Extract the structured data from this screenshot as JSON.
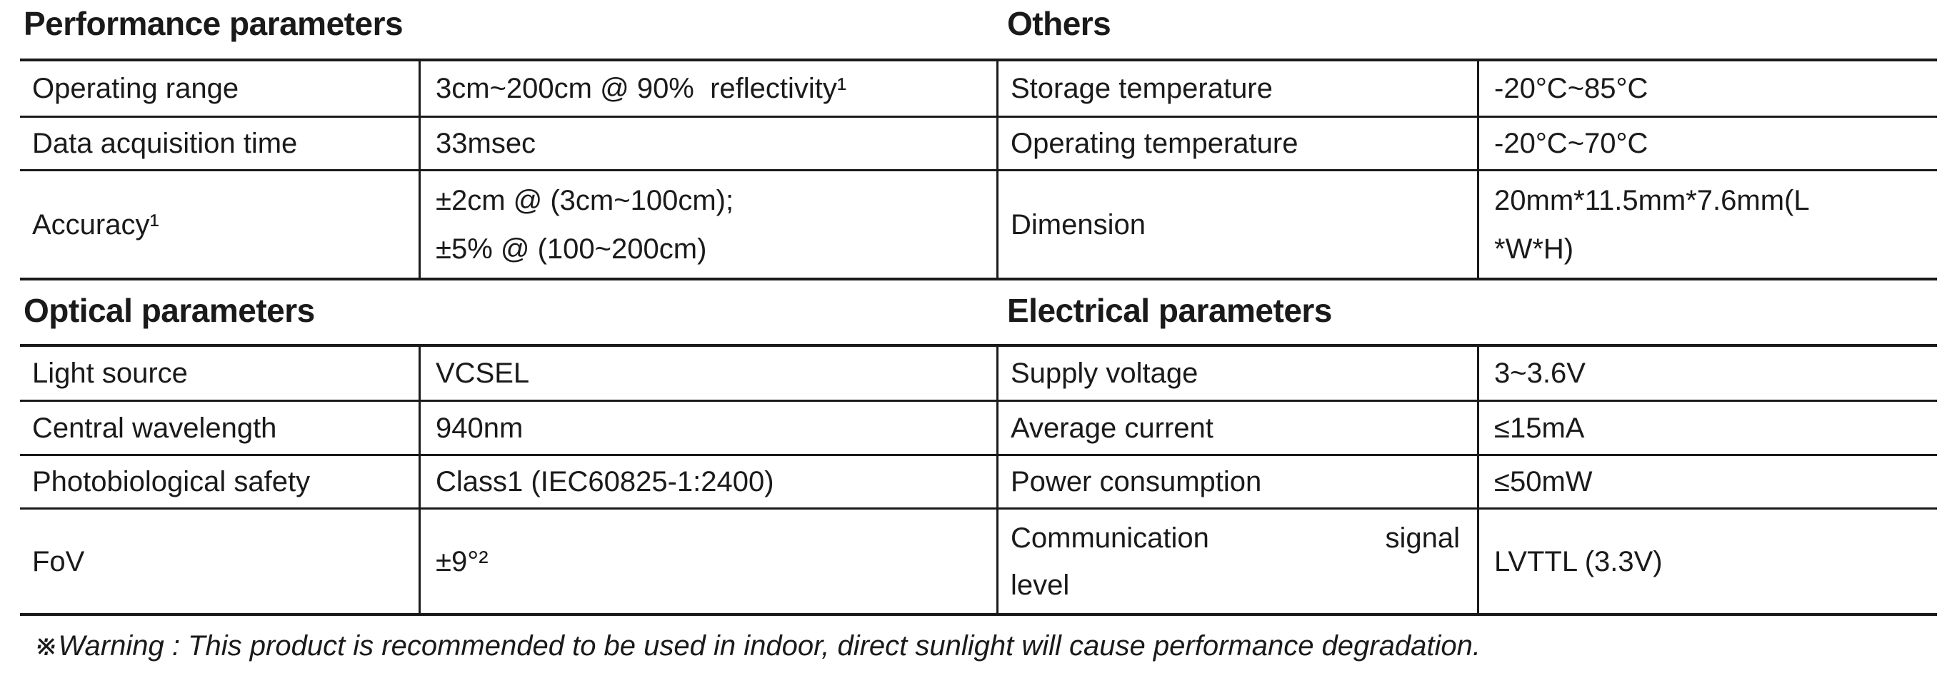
{
  "sections": {
    "performance": {
      "title": "Performance parameters",
      "rows": [
        {
          "label": "Operating range",
          "value": "3cm~200cm @ 90%  reflectivity¹"
        },
        {
          "label": "Data acquisition time",
          "value": "33msec"
        },
        {
          "label": "Accuracy¹",
          "value": "±2cm @ (3cm~100cm);\n±5% @ (100~200cm)"
        }
      ]
    },
    "others": {
      "title": "Others",
      "rows": [
        {
          "label": "Storage temperature",
          "value": "-20°C~85°C"
        },
        {
          "label": "Operating temperature",
          "value": "-20°C~70°C"
        },
        {
          "label": "Dimension",
          "value": "20mm*11.5mm*7.6mm(L\n*W*H)"
        }
      ]
    },
    "optical": {
      "title": "Optical parameters",
      "rows": [
        {
          "label": "Light source",
          "value": "VCSEL"
        },
        {
          "label": "Central wavelength",
          "value": "940nm"
        },
        {
          "label": "Photobiological safety",
          "value": "Class1 (IEC60825-1:2400)"
        },
        {
          "label": "FoV",
          "value": "±9°²"
        }
      ]
    },
    "electrical": {
      "title": "Electrical parameters",
      "rows": [
        {
          "label": "Supply voltage",
          "value": "3~3.6V"
        },
        {
          "label": "Average current",
          "value": "≤15mA"
        },
        {
          "label": "Power consumption",
          "value": "≤50mW"
        },
        {
          "label": "Communication signal level",
          "label_parts": [
            "Communication",
            "signal",
            "level"
          ],
          "value": "LVTTL (3.3V)"
        }
      ]
    }
  },
  "footnote": {
    "text": "※Warning : This product is recommended to be used in indoor, direct sunlight will cause performance degradation."
  },
  "colors": {
    "text": "#1a1a1a",
    "border": "#1a1a1a",
    "background": "#ffffff"
  }
}
